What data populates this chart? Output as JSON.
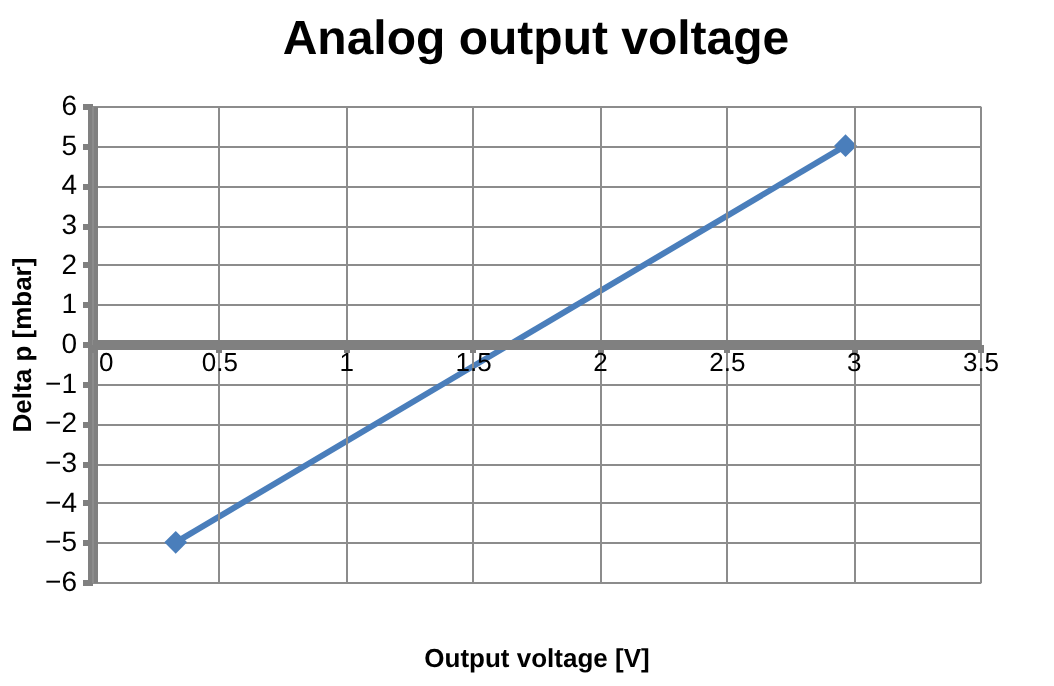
{
  "chart_data": {
    "type": "line",
    "title": "Analog output voltage",
    "xlabel": "Output voltage [V]",
    "ylabel": "Delta p [mbar]",
    "x": [
      0.33,
      2.97
    ],
    "series": [
      {
        "color": "#4a7ebb",
        "values": [
          -5,
          5
        ]
      }
    ],
    "xlim": [
      0,
      3.5
    ],
    "xticks": [
      0,
      0.5,
      1,
      1.5,
      2,
      2.5,
      3,
      3.5
    ],
    "ylim": [
      -6,
      6
    ],
    "yticks": [
      -6,
      -5,
      -4,
      -3,
      -2,
      -1,
      0,
      1,
      2,
      3,
      4,
      5,
      6
    ],
    "grid": true,
    "marker": "diamond",
    "line_style": "solid"
  }
}
